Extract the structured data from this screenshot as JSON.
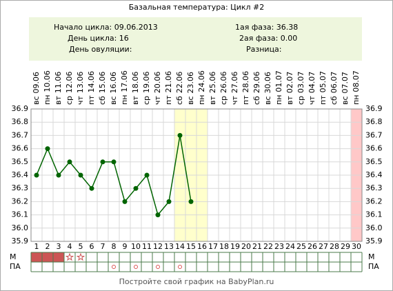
{
  "chart_data": {
    "type": "line",
    "title": "Базальная температура: Цикл #2",
    "info_left": [
      "Начало цикла: 09.06.2013",
      "День цикла: 16",
      "День овуляции:"
    ],
    "info_right": [
      "1ая фаза: 36.38",
      "2ая фаза: 0.00",
      "Разница:"
    ],
    "weekdays": [
      "вс",
      "пн",
      "вт",
      "ср",
      "чт",
      "пт",
      "сб",
      "вс",
      "пн",
      "вт",
      "ср",
      "чт",
      "пт",
      "сб",
      "вс",
      "пн",
      "вт",
      "ср",
      "чт",
      "пт",
      "сб",
      "вс",
      "пн",
      "вт",
      "ср",
      "чт",
      "пт",
      "сб",
      "вс",
      "пн"
    ],
    "dates": [
      "09.06",
      "10.06",
      "11.06",
      "12.06",
      "13.06",
      "14.06",
      "15.06",
      "16.06",
      "17.06",
      "18.06",
      "19.06",
      "20.06",
      "21.06",
      "22.06",
      "23.06",
      "24.06",
      "25.06",
      "26.06",
      "27.06",
      "28.06",
      "29.06",
      "30.06",
      "01.07",
      "02.07",
      "03.07",
      "04.07",
      "05.07",
      "06.07",
      "07.07",
      "08.07"
    ],
    "categories": [
      1,
      2,
      3,
      4,
      5,
      6,
      7,
      8,
      9,
      10,
      11,
      12,
      13,
      14,
      15,
      16,
      17,
      18,
      19,
      20,
      21,
      22,
      23,
      24,
      25,
      26,
      27,
      28,
      29,
      30
    ],
    "values": [
      36.4,
      36.6,
      36.4,
      36.5,
      36.4,
      36.3,
      36.5,
      36.5,
      36.2,
      36.3,
      36.4,
      36.1,
      36.2,
      36.7,
      36.2,
      null,
      null,
      null,
      null,
      null,
      null,
      null,
      null,
      null,
      null,
      null,
      null,
      null,
      null,
      null
    ],
    "color": "#006400",
    "ylim": [
      35.9,
      36.9
    ],
    "yticks": [
      36.9,
      36.8,
      36.7,
      36.6,
      36.5,
      36.4,
      36.3,
      36.2,
      36.1,
      {
        "value": 36,
        "label": "36.0"
      },
      35.9
    ],
    "grid": true,
    "highlights": [
      {
        "from": 14,
        "to": 16,
        "color": "#ffffcc"
      },
      {
        "from": 30,
        "to": 30,
        "color": "#ffc8c8"
      }
    ],
    "menstruation": {
      "label": "М",
      "heavy": [
        1,
        2,
        3
      ],
      "spotting": [
        4,
        5
      ],
      "color": "#cc5555"
    },
    "intercourse": {
      "label": "ПА",
      "days": [
        8,
        10,
        12,
        14
      ],
      "color": "#dd5555"
    },
    "footer": "Постройте свой график на BabyPlan.ru"
  }
}
